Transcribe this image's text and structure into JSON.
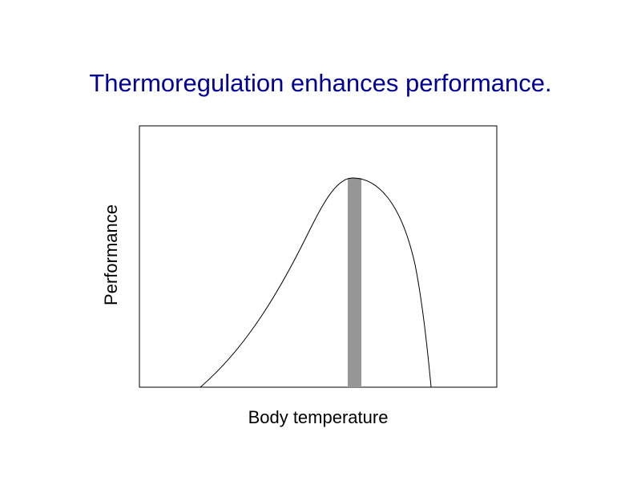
{
  "title": "Thermoregulation enhances performance.",
  "diagram": {
    "x_label": "Body temperature",
    "y_label": "Performance"
  }
}
